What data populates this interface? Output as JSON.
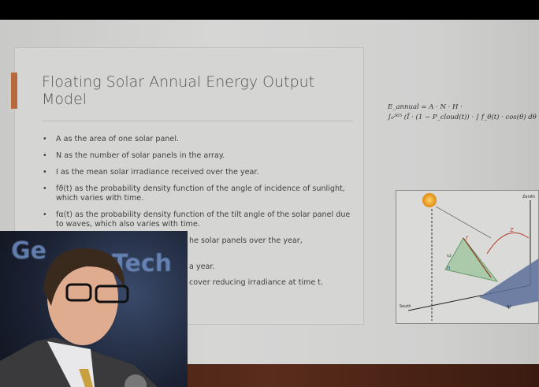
{
  "slide": {
    "title": "Floating Solar Annual Energy Output Model",
    "accent_color": "#b8683a",
    "bullets": [
      "A as the area of one solar panel.",
      "N as the number of solar panels in the array.",
      "I as the mean solar irradiance received over the year.",
      "fϑ(t) as the probability density function of the angle of incidence of sunlight, which varies with time.",
      "fα(t) as the probability density function of the tilt angle of the solar panel due to waves, which also varies with time."
    ],
    "partial_lines": [
      "he solar panels over the year,",
      "a year.",
      "cover reducing irradiance at time t."
    ],
    "formula_line1": "E_annual = A · N · H ·",
    "formula_line2": "∫₀³⁶⁵ (Ī · (1 − P_cloud(t)) · ∫ f_θ(t) · cos(θ) dθ · ∫",
    "diagram_labels": {
      "zenith": "Zenith",
      "south": "South",
      "r": "r",
      "z": "Z",
      "omega": "ω",
      "n": "n",
      "psi": "Ψ"
    }
  },
  "speaker_inset": {
    "logo_left": "Ge",
    "logo_right": "Tech"
  }
}
